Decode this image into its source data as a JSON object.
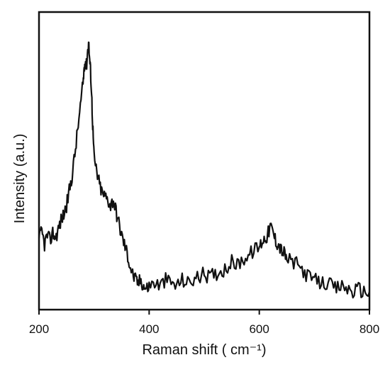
{
  "chart_data": {
    "type": "line",
    "xlabel": "Raman shift ( cm⁻¹)",
    "ylabel": "Intensity (a.u.)",
    "xlim": [
      200,
      800
    ],
    "ylim": [
      0,
      1
    ],
    "x_ticks": [
      {
        "value": 200,
        "label": "200"
      },
      {
        "value": 400,
        "label": "400"
      },
      {
        "value": 600,
        "label": "600"
      },
      {
        "value": 800,
        "label": "800"
      }
    ],
    "y_ticks_shown": false,
    "grid": false,
    "legend": "none",
    "line_color": "#111111",
    "series": [
      {
        "x": [
          200,
          205,
          210,
          215,
          220,
          225,
          230,
          235,
          240,
          245,
          250,
          255,
          260,
          265,
          270,
          275,
          280,
          282,
          284,
          286,
          288,
          290,
          292,
          294,
          296,
          298,
          300,
          305,
          310,
          315,
          320,
          325,
          330,
          335,
          340,
          345,
          350,
          355,
          360,
          365,
          370,
          375,
          380,
          385,
          390,
          395,
          400,
          410,
          420,
          430,
          440,
          450,
          460,
          470,
          480,
          490,
          500,
          510,
          520,
          530,
          540,
          550,
          560,
          570,
          580,
          590,
          600,
          605,
          610,
          615,
          620,
          625,
          630,
          635,
          640,
          645,
          650,
          660,
          670,
          680,
          690,
          700,
          710,
          720,
          730,
          740,
          750,
          760,
          770,
          780,
          790,
          800
        ],
        "y": [
          0.24,
          0.26,
          0.22,
          0.25,
          0.23,
          0.26,
          0.24,
          0.27,
          0.3,
          0.32,
          0.35,
          0.4,
          0.45,
          0.52,
          0.6,
          0.68,
          0.76,
          0.81,
          0.84,
          0.82,
          0.86,
          0.9,
          0.84,
          0.79,
          0.7,
          0.6,
          0.51,
          0.46,
          0.42,
          0.39,
          0.38,
          0.37,
          0.35,
          0.37,
          0.33,
          0.29,
          0.25,
          0.22,
          0.19,
          0.15,
          0.12,
          0.1,
          0.09,
          0.1,
          0.08,
          0.07,
          0.08,
          0.09,
          0.08,
          0.1,
          0.09,
          0.08,
          0.1,
          0.09,
          0.1,
          0.11,
          0.12,
          0.11,
          0.12,
          0.13,
          0.14,
          0.16,
          0.15,
          0.17,
          0.18,
          0.2,
          0.21,
          0.23,
          0.24,
          0.25,
          0.28,
          0.26,
          0.23,
          0.22,
          0.2,
          0.19,
          0.17,
          0.16,
          0.15,
          0.13,
          0.11,
          0.1,
          0.09,
          0.09,
          0.08,
          0.07,
          0.08,
          0.07,
          0.06,
          0.07,
          0.06,
          0.06
        ]
      }
    ]
  }
}
